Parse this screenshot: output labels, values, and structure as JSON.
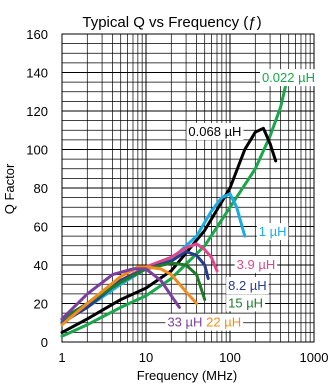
{
  "chart_data": {
    "type": "line",
    "title": "Typical Q vs Frequency (ƒ)",
    "xlabel": "Frequency (MHz)",
    "ylabel": "Q Factor",
    "xscale": "log",
    "xlim": [
      1,
      1000
    ],
    "ylim": [
      0,
      160
    ],
    "x_ticks": [
      "1",
      "10",
      "100",
      "1000"
    ],
    "y_ticks": [
      "0",
      "20",
      "40",
      "60",
      "80",
      "100",
      "120",
      "140",
      "160"
    ],
    "grid": true,
    "series": [
      {
        "name": "0.022 µH",
        "color": "#1aa64a",
        "points": [
          [
            1,
            3
          ],
          [
            2,
            9
          ],
          [
            5,
            18
          ],
          [
            10,
            24
          ],
          [
            20,
            33
          ],
          [
            50,
            50
          ],
          [
            100,
            70
          ],
          [
            200,
            90
          ],
          [
            300,
            107
          ],
          [
            400,
            122
          ],
          [
            500,
            140
          ],
          [
            550,
            134
          ]
        ]
      },
      {
        "name": "0.068 µH",
        "color": "#000000",
        "points": [
          [
            1,
            5
          ],
          [
            2,
            12
          ],
          [
            5,
            22
          ],
          [
            10,
            28
          ],
          [
            20,
            37
          ],
          [
            50,
            58
          ],
          [
            100,
            80
          ],
          [
            150,
            100
          ],
          [
            200,
            109
          ],
          [
            250,
            111
          ],
          [
            300,
            103
          ],
          [
            350,
            94
          ]
        ]
      },
      {
        "name": "1 µH",
        "color": "#1aace4",
        "points": [
          [
            1,
            11
          ],
          [
            2,
            18
          ],
          [
            5,
            30
          ],
          [
            10,
            38
          ],
          [
            20,
            43
          ],
          [
            40,
            55
          ],
          [
            60,
            68
          ],
          [
            80,
            75
          ],
          [
            100,
            77
          ],
          [
            120,
            70
          ],
          [
            150,
            55
          ]
        ]
      },
      {
        "name": "3.9 µH",
        "color": "#e0468c",
        "points": [
          [
            1,
            12
          ],
          [
            2,
            20
          ],
          [
            5,
            32
          ],
          [
            10,
            39
          ],
          [
            20,
            44
          ],
          [
            30,
            49
          ],
          [
            40,
            51
          ],
          [
            50,
            48
          ],
          [
            60,
            44
          ],
          [
            70,
            37
          ]
        ]
      },
      {
        "name": "8.2 µH",
        "color": "#283c8c",
        "points": [
          [
            1,
            10
          ],
          [
            2,
            18
          ],
          [
            5,
            32
          ],
          [
            10,
            38
          ],
          [
            20,
            42
          ],
          [
            30,
            47
          ],
          [
            40,
            45
          ],
          [
            50,
            40
          ],
          [
            55,
            33
          ]
        ]
      },
      {
        "name": "15 µH",
        "color": "#1f7a2a",
        "points": [
          [
            1,
            12
          ],
          [
            2,
            20
          ],
          [
            5,
            31
          ],
          [
            10,
            38
          ],
          [
            20,
            41
          ],
          [
            30,
            40
          ],
          [
            40,
            35
          ],
          [
            50,
            22
          ]
        ]
      },
      {
        "name": "22 µH",
        "color": "#f28c1e",
        "points": [
          [
            1,
            9
          ],
          [
            2,
            20
          ],
          [
            5,
            34
          ],
          [
            8,
            39
          ],
          [
            10,
            39
          ],
          [
            15,
            38
          ],
          [
            20,
            35
          ],
          [
            30,
            26
          ],
          [
            40,
            20
          ]
        ]
      },
      {
        "name": "33 µH",
        "color": "#7b3fa0",
        "points": [
          [
            1,
            12
          ],
          [
            2,
            25
          ],
          [
            4,
            35
          ],
          [
            7,
            38
          ],
          [
            10,
            38
          ],
          [
            15,
            32
          ],
          [
            20,
            24
          ],
          [
            25,
            18
          ]
        ]
      }
    ],
    "labels": [
      {
        "text": "0.022 µH",
        "series": 0,
        "x": 240,
        "y": 135
      },
      {
        "text": "0.068 µH",
        "series": 1,
        "x": 32,
        "y": 107
      },
      {
        "text": "1 µH",
        "series": 2,
        "x": 220,
        "y": 55
      },
      {
        "text": "3.9 µH",
        "series": 3,
        "x": 120,
        "y": 38
      },
      {
        "text": "8.2 µH",
        "series": 4,
        "x": 95,
        "y": 27
      },
      {
        "text": "15 µH",
        "series": 5,
        "x": 95,
        "y": 18
      },
      {
        "text": "22 µH",
        "series": 6,
        "x": 52,
        "y": 8
      },
      {
        "text": "33 µH",
        "series": 7,
        "x": 18,
        "y": 8
      }
    ]
  }
}
